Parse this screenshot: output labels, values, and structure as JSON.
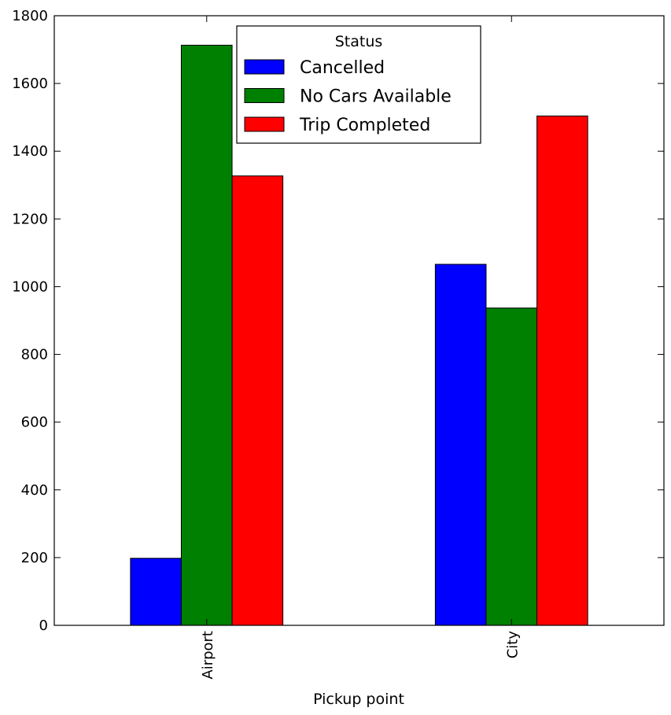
{
  "chart_data": {
    "type": "bar",
    "categories": [
      "Airport",
      "City"
    ],
    "series": [
      {
        "name": "Cancelled",
        "values": [
          198,
          1066
        ],
        "color": "#0000ff"
      },
      {
        "name": "No Cars Available",
        "values": [
          1713,
          937
        ],
        "color": "#008000"
      },
      {
        "name": "Trip Completed",
        "values": [
          1327,
          1504
        ],
        "color": "#ff0000"
      }
    ],
    "title": "",
    "xlabel": "Pickup point",
    "ylabel": "",
    "ylim": [
      0,
      1800
    ],
    "yticks": [
      0,
      200,
      400,
      600,
      800,
      1000,
      1200,
      1400,
      1600,
      1800
    ],
    "legend": {
      "title": "Status",
      "placement": "top-center"
    },
    "grid": false
  }
}
